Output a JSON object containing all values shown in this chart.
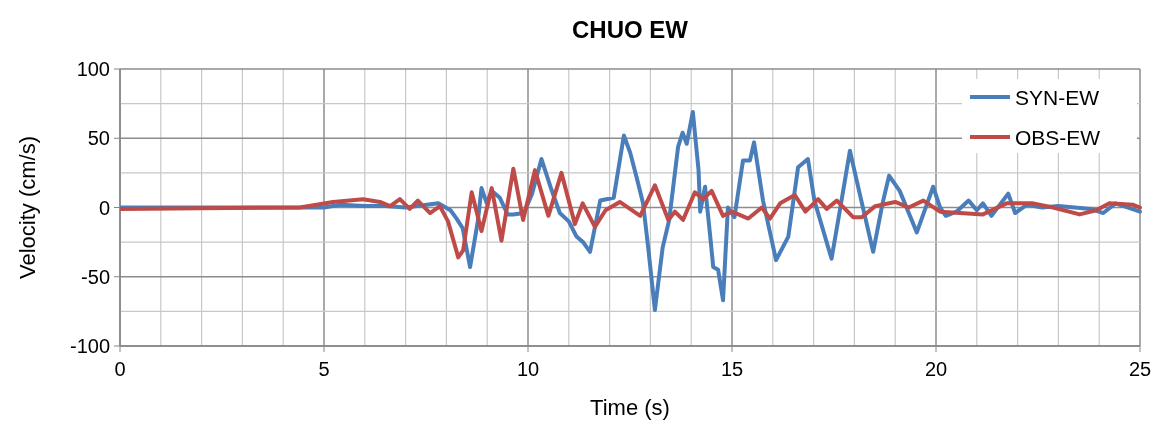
{
  "chart_data": {
    "type": "line",
    "title": "CHUO EW",
    "xlabel": "Time (s)",
    "ylabel": "Velocity (cm/s)",
    "xlim": [
      0,
      25
    ],
    "ylim": [
      -100,
      100
    ],
    "xticks": [
      0,
      {
        "value": 1,
        "label": null
      },
      {
        "value": 2,
        "label": null
      },
      {
        "value": 3,
        "label": null
      },
      {
        "value": 4,
        "label": null
      },
      5,
      {
        "value": 6,
        "label": null
      },
      {
        "value": 7,
        "label": null
      },
      {
        "value": 8,
        "label": null
      },
      {
        "value": 9,
        "label": null
      },
      10,
      {
        "value": 11,
        "label": null
      },
      {
        "value": 12,
        "label": null
      },
      {
        "value": 13,
        "label": null
      },
      {
        "value": 14,
        "label": null
      },
      15,
      {
        "value": 16,
        "label": null
      },
      {
        "value": 17,
        "label": null
      },
      {
        "value": 18,
        "label": null
      },
      {
        "value": 19,
        "label": null
      },
      20,
      {
        "value": 21,
        "label": null
      },
      {
        "value": 22,
        "label": null
      },
      {
        "value": 23,
        "label": null
      },
      {
        "value": 24,
        "label": null
      },
      25
    ],
    "yticks": [
      -100,
      {
        "value": -75,
        "label": null
      },
      -50,
      {
        "value": -25,
        "label": null
      },
      0,
      {
        "value": 25,
        "label": null
      },
      50,
      {
        "value": 75,
        "label": null
      },
      100
    ],
    "grid": true,
    "legend": "top right",
    "marker": "none",
    "line_style": "solid",
    "series": [
      {
        "name": "SYN-EW",
        "color": "#4a7ebb",
        "x": [
          0,
          4.4,
          5.0,
          5.4,
          6.0,
          6.5,
          7.0,
          7.8,
          8.1,
          8.25,
          8.4,
          8.58,
          8.77,
          8.86,
          8.99,
          9.11,
          9.31,
          9.5,
          9.64,
          9.9,
          10.1,
          10.33,
          10.55,
          10.78,
          11.0,
          11.19,
          11.35,
          11.52,
          11.77,
          12.1,
          12.35,
          12.5,
          12.66,
          12.82,
          12.95,
          13.11,
          13.3,
          13.46,
          13.68,
          13.79,
          13.89,
          14.04,
          14.18,
          14.22,
          14.34,
          14.46,
          14.54,
          14.66,
          14.78,
          14.9,
          15.06,
          15.27,
          15.44,
          15.54,
          15.76,
          16.08,
          16.38,
          16.62,
          16.86,
          17.02,
          17.44,
          17.65,
          17.89,
          18.13,
          18.46,
          18.69,
          18.85,
          19.11,
          19.53,
          19.93,
          20.1,
          20.24,
          20.5,
          20.8,
          21.0,
          21.15,
          21.36,
          21.77,
          21.94,
          22.23,
          22.6,
          23.0,
          23.4,
          23.8,
          24.1,
          24.4,
          24.8,
          25
        ],
        "values": [
          0,
          0,
          0,
          2,
          1,
          1,
          0,
          3,
          -2,
          -8,
          -15,
          -43,
          -10,
          14,
          3,
          12,
          7,
          -5,
          -5,
          -4,
          10,
          35,
          15,
          -4,
          -10,
          -21,
          -25,
          -32,
          5,
          7,
          52,
          40,
          22,
          3,
          -30,
          -74,
          -29,
          -9,
          44,
          54,
          46,
          69,
          27,
          -3,
          15,
          -19,
          -43,
          -45,
          -67,
          0,
          -7,
          34,
          34,
          47,
          5,
          -38,
          -21,
          29,
          35,
          5,
          -37,
          -1,
          41,
          10,
          -32,
          3,
          23,
          12,
          -18,
          15,
          0,
          -6,
          -3,
          5,
          -2,
          3,
          -6,
          10,
          -4,
          2,
          0,
          1,
          0,
          -1,
          -4,
          3,
          -1,
          -3
        ]
      },
      {
        "name": "OBS-EW",
        "color": "#be4b48",
        "x": [
          0,
          4.41,
          5.22,
          5.96,
          6.37,
          6.62,
          6.86,
          7.1,
          7.3,
          7.6,
          7.84,
          8.04,
          8.29,
          8.41,
          8.62,
          8.86,
          9.11,
          9.35,
          9.64,
          9.88,
          10.17,
          10.5,
          10.82,
          11.15,
          11.34,
          11.64,
          11.9,
          12.25,
          12.75,
          13.11,
          13.44,
          13.6,
          13.8,
          14.09,
          14.29,
          14.5,
          14.78,
          15.0,
          15.4,
          15.73,
          15.93,
          16.18,
          16.54,
          16.8,
          17.11,
          17.32,
          17.57,
          17.97,
          18.18,
          18.51,
          19.0,
          19.33,
          19.69,
          20.1,
          20.59,
          21.15,
          21.73,
          22.38,
          22.87,
          23.52,
          23.93,
          24.25,
          24.82,
          25
        ],
        "values": [
          -1,
          0,
          4,
          6,
          4,
          1,
          6,
          -1,
          5,
          -4,
          1,
          -10,
          -36,
          -31,
          11,
          -17,
          14,
          -24,
          28,
          -9,
          27,
          -6,
          25,
          -12,
          3,
          -14,
          -2,
          4,
          -6,
          16,
          -9,
          -3,
          -9,
          11,
          6,
          12,
          -6,
          -3,
          -8,
          0,
          -8,
          3,
          9,
          -3,
          6,
          -1,
          5,
          -7,
          -7,
          1,
          4,
          0,
          5,
          -3,
          -4,
          -5,
          3,
          3,
          0,
          -5,
          -2,
          3,
          2,
          0
        ]
      }
    ]
  }
}
